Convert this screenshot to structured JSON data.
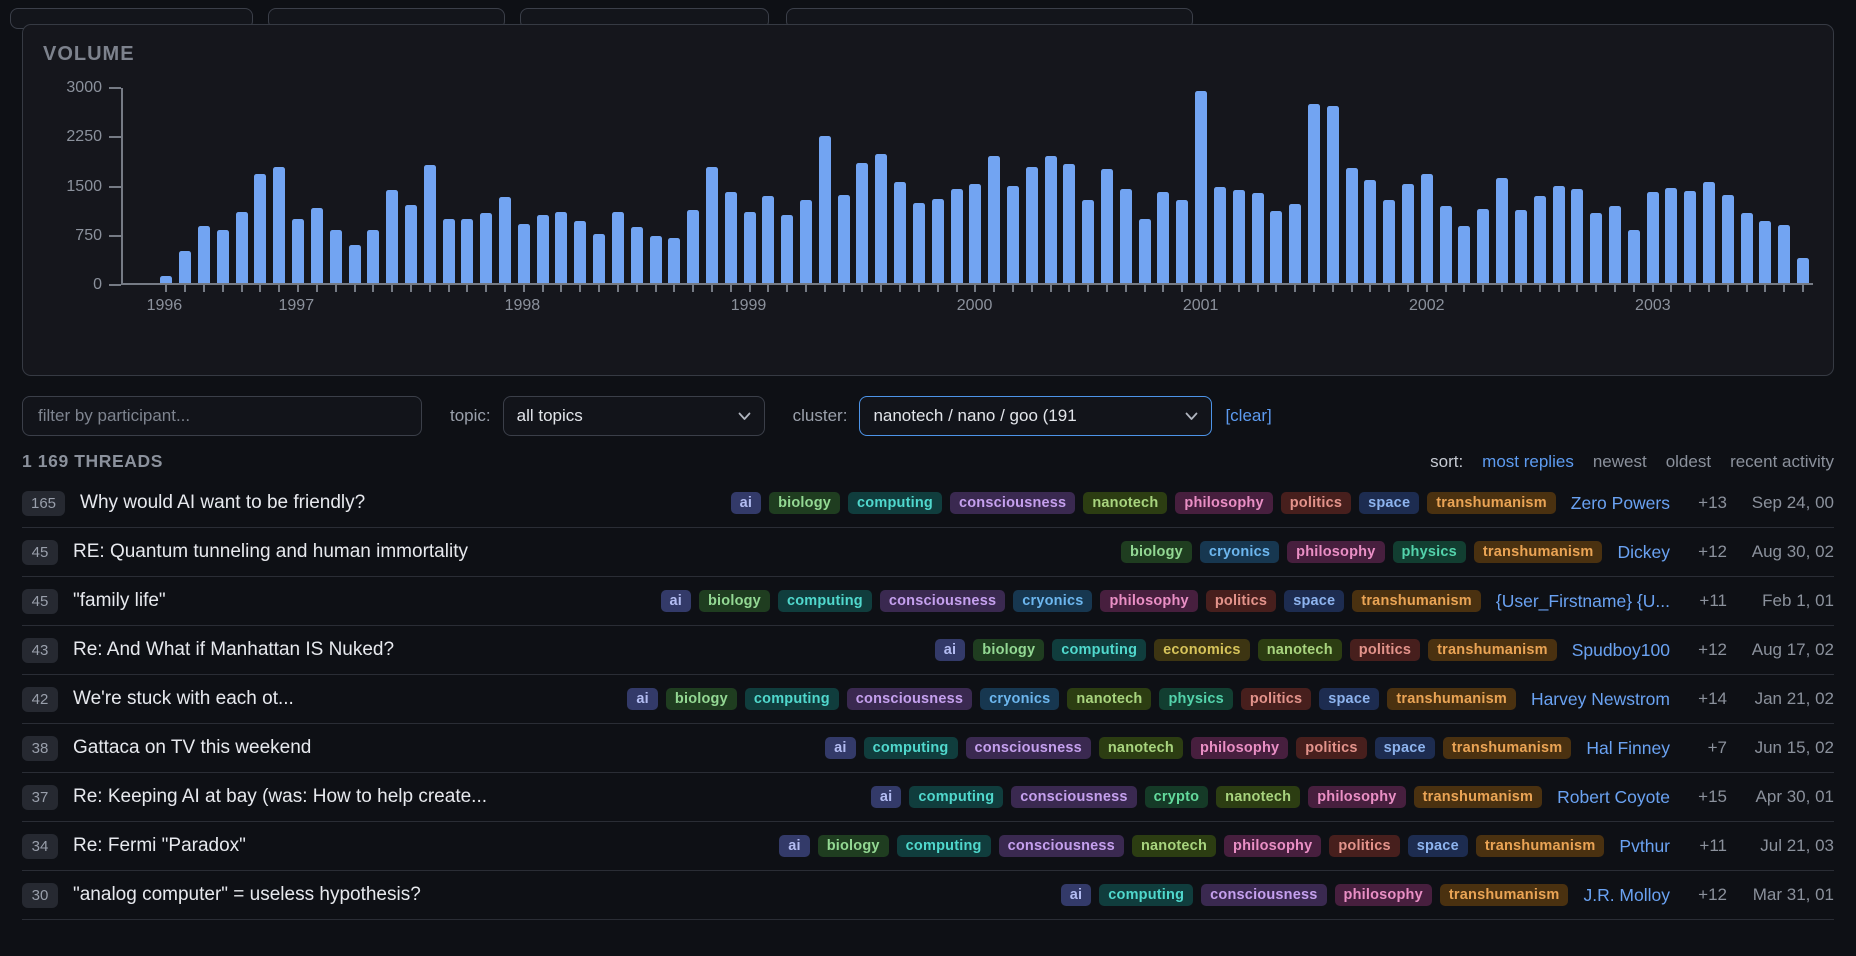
{
  "chart": {
    "title": "VOLUME"
  },
  "chart_data": {
    "type": "bar",
    "title": "VOLUME",
    "frequency": "monthly",
    "start_month": "1996-06",
    "ylim": [
      0,
      3000
    ],
    "yticks": [
      0,
      750,
      1500,
      2250,
      3000
    ],
    "bar_color": "#72a4f2",
    "grid": false,
    "values": [
      110,
      500,
      870,
      820,
      1100,
      1680,
      1790,
      990,
      1160,
      810,
      590,
      810,
      1430,
      1200,
      1810,
      990,
      990,
      1080,
      1330,
      910,
      1050,
      1100,
      950,
      750,
      1100,
      860,
      720,
      700,
      1130,
      1790,
      1400,
      1100,
      1340,
      1050,
      1270,
      2260,
      1350,
      1850,
      1990,
      1560,
      1230,
      1300,
      1440,
      1530,
      1950,
      1500,
      1780,
      1950,
      1830,
      1270,
      1750,
      1450,
      980,
      1400,
      1270,
      2950,
      1480,
      1430,
      1380,
      1110,
      1220,
      2750,
      2730,
      1770,
      1590,
      1280,
      1520,
      1680,
      1190,
      880,
      1140,
      1620,
      1130,
      1340,
      1490,
      1440,
      1080,
      1190,
      820,
      1400,
      1460,
      1420,
      1550,
      1350,
      1080,
      960,
      900,
      380
    ],
    "year_ticks": [
      {
        "index": 0,
        "label": "1996"
      },
      {
        "index": 7,
        "label": "1997"
      },
      {
        "index": 19,
        "label": "1998"
      },
      {
        "index": 31,
        "label": "1999"
      },
      {
        "index": 43,
        "label": "2000"
      },
      {
        "index": 55,
        "label": "2001"
      },
      {
        "index": 67,
        "label": "2002"
      },
      {
        "index": 79,
        "label": "2003"
      }
    ]
  },
  "filters": {
    "participant_placeholder": "filter by participant...",
    "topic_label": "topic:",
    "topic_value": "all topics",
    "cluster_label": "cluster:",
    "cluster_value": "nanotech / nano / goo (191",
    "clear_label": "[clear]"
  },
  "threads": {
    "count_label": "1 169 THREADS",
    "sort_label": "sort:",
    "sort_options": [
      {
        "label": "most replies",
        "active": true
      },
      {
        "label": "newest",
        "active": false
      },
      {
        "label": "oldest",
        "active": false
      },
      {
        "label": "recent activity",
        "active": false
      }
    ],
    "tag_colors": {
      "ai": {
        "bg": "#333a69",
        "fg": "#b3bcf2"
      },
      "biology": {
        "bg": "#1f3d20",
        "fg": "#93d893"
      },
      "computing": {
        "bg": "#103d3d",
        "fg": "#50d8cd"
      },
      "consciousness": {
        "bg": "#3a2950",
        "fg": "#c5a0ee"
      },
      "cryonics": {
        "bg": "#173750",
        "fg": "#6cb6ee"
      },
      "crypto": {
        "bg": "#153a27",
        "fg": "#63da9c"
      },
      "economics": {
        "bg": "#3d3512",
        "fg": "#d6c35a"
      },
      "nanotech": {
        "bg": "#2c3d12",
        "fg": "#a8d47e"
      },
      "philosophy": {
        "bg": "#471f3e",
        "fg": "#ea8fc5"
      },
      "physics": {
        "bg": "#123e31",
        "fg": "#53d3ab"
      },
      "politics": {
        "bg": "#471f1d",
        "fg": "#e3938b"
      },
      "space": {
        "bg": "#1d2c50",
        "fg": "#8db3ee"
      },
      "transhumanism": {
        "bg": "#4a3110",
        "fg": "#eaa455"
      }
    },
    "rows": [
      {
        "count": "165",
        "title": "Why would AI want to be friendly?",
        "tags": [
          "ai",
          "biology",
          "computing",
          "consciousness",
          "nanotech",
          "philosophy",
          "politics",
          "space",
          "transhumanism"
        ],
        "author": "Zero Powers",
        "score": "+13",
        "date": "Sep 24, 00"
      },
      {
        "count": "45",
        "title": "RE: Quantum tunneling and human immortality",
        "tags": [
          "biology",
          "cryonics",
          "philosophy",
          "physics",
          "transhumanism"
        ],
        "author": "Dickey",
        "score": "+12",
        "date": "Aug 30, 02"
      },
      {
        "count": "45",
        "title": "\"family life\"",
        "tags": [
          "ai",
          "biology",
          "computing",
          "consciousness",
          "cryonics",
          "philosophy",
          "politics",
          "space",
          "transhumanism"
        ],
        "author": "{User_Firstname} {U...",
        "score": "+11",
        "date": "Feb 1, 01"
      },
      {
        "count": "43",
        "title": "Re: And What if Manhattan IS Nuked?",
        "tags": [
          "ai",
          "biology",
          "computing",
          "economics",
          "nanotech",
          "politics",
          "transhumanism"
        ],
        "author": "Spudboy100",
        "score": "+12",
        "date": "Aug 17, 02"
      },
      {
        "count": "42",
        "title": "We're stuck with each ot...",
        "tags": [
          "ai",
          "biology",
          "computing",
          "consciousness",
          "cryonics",
          "nanotech",
          "physics",
          "politics",
          "space",
          "transhumanism"
        ],
        "author": "Harvey Newstrom",
        "score": "+14",
        "date": "Jan 21, 02"
      },
      {
        "count": "38",
        "title": "Gattaca on TV this weekend",
        "tags": [
          "ai",
          "computing",
          "consciousness",
          "nanotech",
          "philosophy",
          "politics",
          "space",
          "transhumanism"
        ],
        "author": "Hal Finney",
        "score": "+7",
        "date": "Jun 15, 02"
      },
      {
        "count": "37",
        "title": "Re: Keeping AI at bay (was: How to help create...",
        "tags": [
          "ai",
          "computing",
          "consciousness",
          "crypto",
          "nanotech",
          "philosophy",
          "transhumanism"
        ],
        "author": "Robert Coyote",
        "score": "+15",
        "date": "Apr 30, 01"
      },
      {
        "count": "34",
        "title": "Re: Fermi \"Paradox\"",
        "tags": [
          "ai",
          "biology",
          "computing",
          "consciousness",
          "nanotech",
          "philosophy",
          "politics",
          "space",
          "transhumanism"
        ],
        "author": "Pvthur",
        "score": "+11",
        "date": "Jul 21, 03"
      },
      {
        "count": "30",
        "title": "\"analog computer\" = useless hypothesis?",
        "tags": [
          "ai",
          "computing",
          "consciousness",
          "philosophy",
          "transhumanism"
        ],
        "author": "J.R. Molloy",
        "score": "+12",
        "date": "Mar 31, 01"
      }
    ]
  }
}
